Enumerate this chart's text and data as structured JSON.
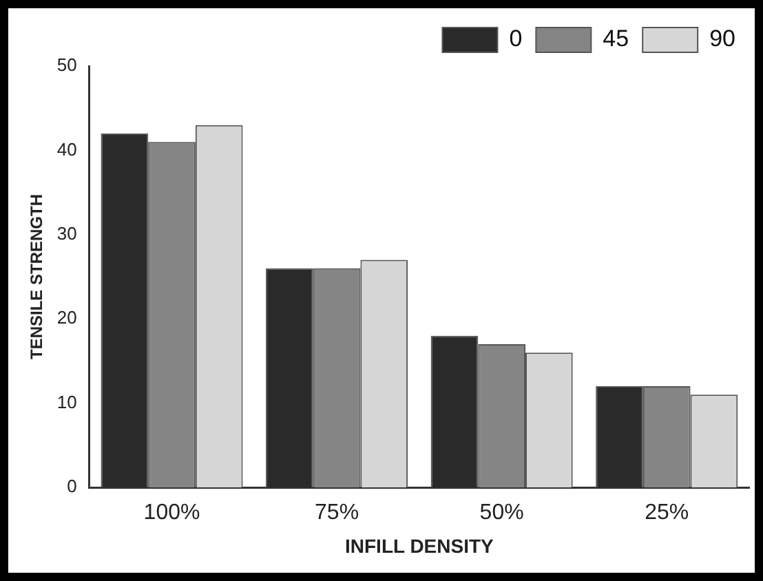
{
  "chart_data": {
    "type": "bar",
    "xlabel": "INFILL DENSITY",
    "ylabel": "TENSILE STRENGTH",
    "categories": [
      "100%",
      "75%",
      "50%",
      "25%"
    ],
    "series": [
      {
        "name": "0",
        "color": "#2a2a2a",
        "values": [
          42,
          26,
          18,
          12
        ]
      },
      {
        "name": "45",
        "color": "#858585",
        "values": [
          41,
          26,
          17,
          12
        ]
      },
      {
        "name": "90",
        "color": "#d6d6d6",
        "values": [
          43,
          27,
          16,
          11
        ]
      }
    ],
    "ylim": [
      0,
      50
    ],
    "yticks": [
      0,
      10,
      20,
      30,
      40,
      50
    ],
    "grid": false,
    "legend": "top right"
  }
}
